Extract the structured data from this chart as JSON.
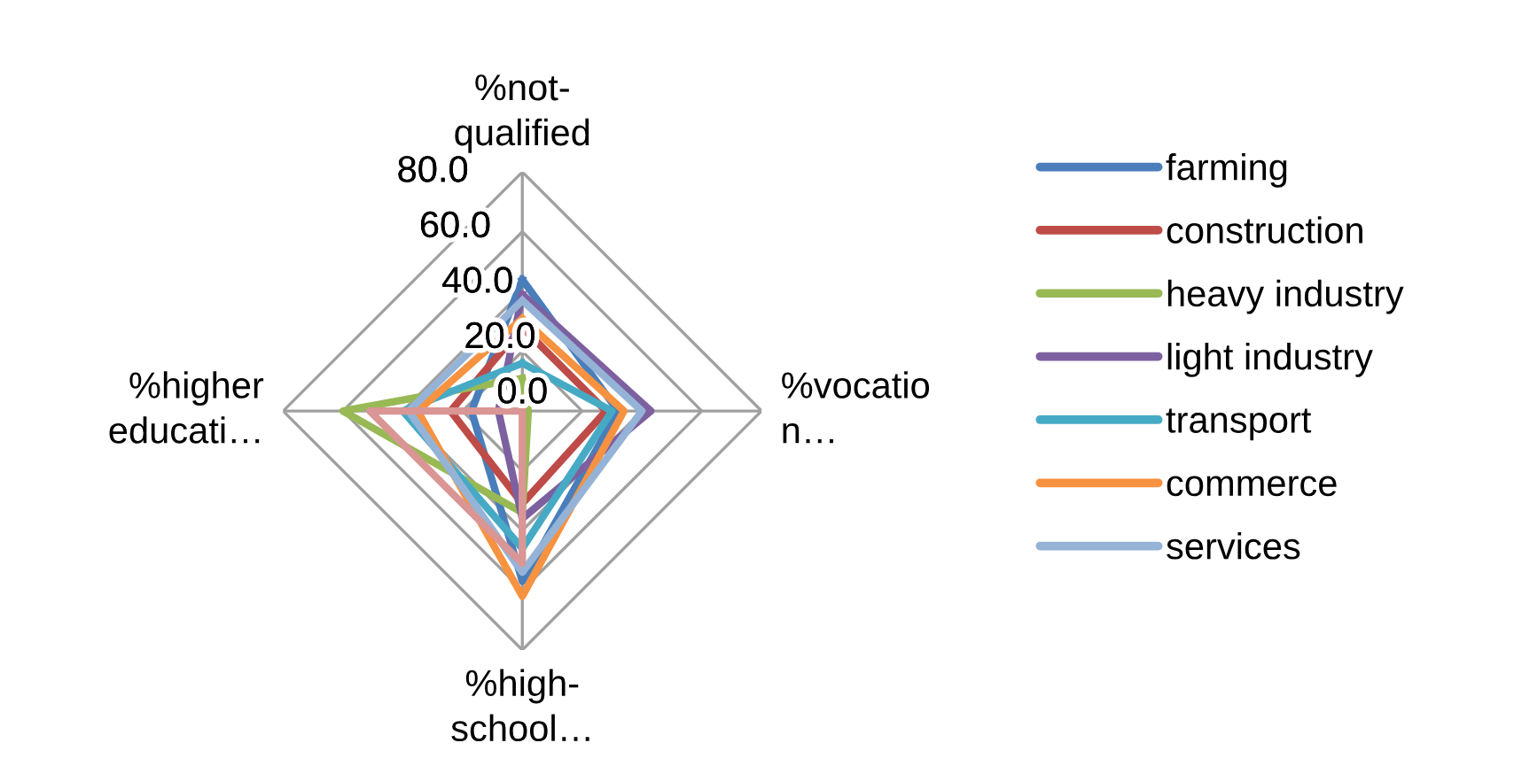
{
  "chart_data": {
    "type": "radar",
    "categories": [
      "%not-\nqualified",
      "%vocatio\nn…",
      "%high-\nschool…",
      "%higher\neducati…"
    ],
    "ylim": [
      0,
      80
    ],
    "yticks": [
      {
        "value": 0,
        "label": "0.0"
      },
      {
        "value": 20,
        "label": "20.0"
      },
      {
        "value": 40,
        "label": "40.0"
      },
      {
        "value": 60,
        "label": "60.0"
      },
      {
        "value": 80,
        "label": "80.0"
      }
    ],
    "grid": true,
    "legend": "right",
    "marker": "none",
    "line_style": "solid",
    "series": [
      {
        "name": "farming",
        "color": "#4a7ebb",
        "values": [
          44,
          32,
          57,
          17
        ]
      },
      {
        "name": "construction",
        "color": "#be4b48",
        "values": [
          28,
          28,
          31,
          24
        ]
      },
      {
        "name": "heavy industry",
        "color": "#98b954",
        "values": [
          11,
          2,
          34,
          60
        ]
      },
      {
        "name": "light industry",
        "color": "#7d60a0",
        "values": [
          39,
          43,
          36,
          8
        ]
      },
      {
        "name": "transport",
        "color": "#46aac5",
        "values": [
          16,
          30,
          46,
          40
        ]
      },
      {
        "name": "commerce",
        "color": "#f69240",
        "values": [
          31,
          34,
          62,
          35
        ]
      },
      {
        "name": "services",
        "color": "#95b3d7",
        "values": [
          37,
          40,
          54,
          38
        ]
      },
      {
        "color": "#d99694",
        "values": [
          0,
          0,
          51,
          51
        ]
      }
    ]
  }
}
